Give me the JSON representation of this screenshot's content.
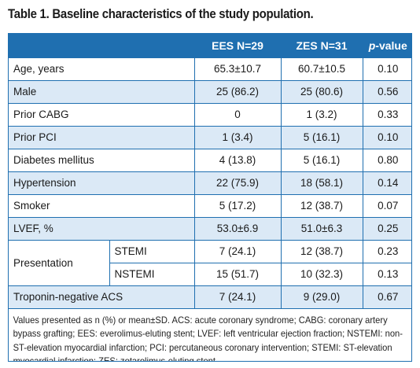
{
  "title": "Table 1. Baseline characteristics of the study population.",
  "headers": {
    "blank": "",
    "ees": "EES N=29",
    "zes": "ZES N=31",
    "p_italic": "p",
    "p_rest": "-value"
  },
  "rows": [
    {
      "label": "Age, years",
      "sub": "",
      "ees": "65.3±10.7",
      "zes": "60.7±10.5",
      "p": "0.10"
    },
    {
      "label": "Male",
      "sub": "",
      "ees": "25 (86.2)",
      "zes": "25 (80.6)",
      "p": "0.56"
    },
    {
      "label": "Prior CABG",
      "sub": "",
      "ees": "0",
      "zes": "1 (3.2)",
      "p": "0.33"
    },
    {
      "label": "Prior PCI",
      "sub": "",
      "ees": "1 (3.4)",
      "zes": "5 (16.1)",
      "p": "0.10"
    },
    {
      "label": "Diabetes mellitus",
      "sub": "",
      "ees": "4 (13.8)",
      "zes": "5 (16.1)",
      "p": "0.80"
    },
    {
      "label": "Hypertension",
      "sub": "",
      "ees": "22 (75.9)",
      "zes": "18 (58.1)",
      "p": "0.14"
    },
    {
      "label": "Smoker",
      "sub": "",
      "ees": "5 (17.2)",
      "zes": "12 (38.7)",
      "p": "0.07"
    },
    {
      "label": "LVEF, %",
      "sub": "",
      "ees": "53.0±6.9",
      "zes": "51.0±6.3",
      "p": "0.25"
    },
    {
      "label": "Presentation",
      "sub": "STEMI",
      "ees": "7 (24.1)",
      "zes": "12 (38.7)",
      "p": "0.23"
    },
    {
      "label": "",
      "sub": "NSTEMI",
      "ees": "15 (51.7)",
      "zes": "10 (32.3)",
      "p": "0.13"
    },
    {
      "label": "Troponin-negative ACS",
      "sub": "",
      "ees": "7 (24.1)",
      "zes": "9 (29.0)",
      "p": "0.67"
    }
  ],
  "footnote": "Values presented as n (%) or mean±SD. ACS: acute coronary syndrome; CABG: coronary artery bypass grafting; EES: everolimus-eluting stent; LVEF: left ventricular ejection fraction; NSTEMI: non-ST-elevation myocardial infarction; PCI: percutaneous coronary intervention; STEMI: ST-elevation myocardial infarction; ZES: zotarolimus-eluting stent",
  "colors": {
    "accent": "#1f6fb0",
    "shade": "#dbe9f6"
  }
}
